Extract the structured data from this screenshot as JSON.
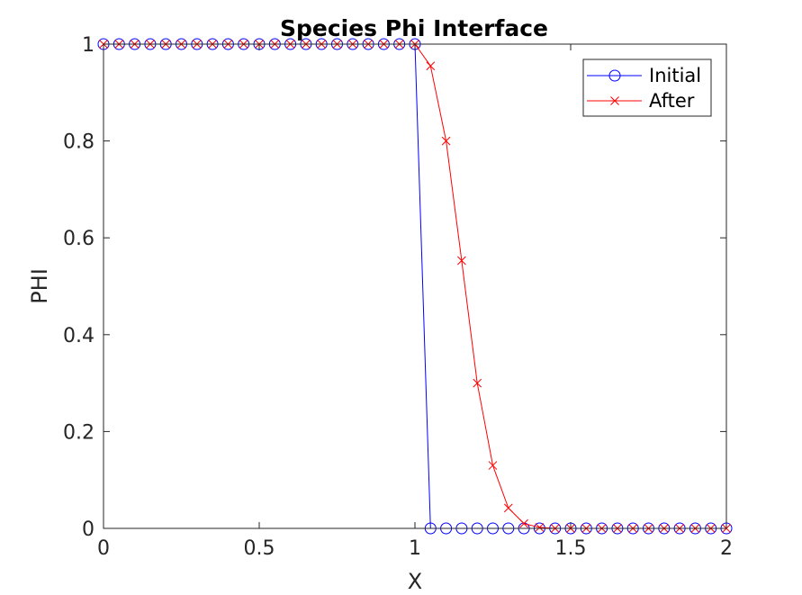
{
  "chart_data": {
    "type": "line",
    "title": "Species Phi Interface",
    "xlabel": "X",
    "ylabel": "PHI",
    "xlim": [
      0,
      2
    ],
    "ylim": [
      0,
      1
    ],
    "xticks": [
      "0",
      "0.5",
      "1",
      "1.5",
      "2"
    ],
    "yticks": [
      "0",
      "0.2",
      "0.4",
      "0.6",
      "0.8",
      "1"
    ],
    "grid": false,
    "legend_position": "top-right",
    "x": [
      0,
      0.05,
      0.1,
      0.15,
      0.2,
      0.25,
      0.3,
      0.35,
      0.4,
      0.45,
      0.5,
      0.55,
      0.6,
      0.65,
      0.7,
      0.75,
      0.8,
      0.85,
      0.9,
      0.95,
      1.0,
      1.05,
      1.1,
      1.15,
      1.2,
      1.25,
      1.3,
      1.35,
      1.4,
      1.45,
      1.5,
      1.55,
      1.6,
      1.65,
      1.7,
      1.75,
      1.8,
      1.85,
      1.9,
      1.95,
      2.0
    ],
    "series": [
      {
        "name": "Initial",
        "color": "#0000ff",
        "marker": "circle",
        "values": [
          1,
          1,
          1,
          1,
          1,
          1,
          1,
          1,
          1,
          1,
          1,
          1,
          1,
          1,
          1,
          1,
          1,
          1,
          1,
          1,
          1,
          0,
          0,
          0,
          0,
          0,
          0,
          0,
          0,
          0,
          0,
          0,
          0,
          0,
          0,
          0,
          0,
          0,
          0,
          0,
          0
        ]
      },
      {
        "name": "After",
        "color": "#ff0000",
        "marker": "x",
        "values": [
          1,
          1,
          1,
          1,
          1,
          1,
          1,
          1,
          1,
          1,
          1,
          1,
          1,
          1,
          1,
          1,
          1,
          1,
          1,
          1,
          1,
          0.955,
          0.8,
          0.553,
          0.3,
          0.13,
          0.042,
          0.01,
          0.002,
          0,
          0,
          0,
          0,
          0,
          0,
          0,
          0,
          0,
          0,
          0,
          0
        ]
      }
    ]
  }
}
